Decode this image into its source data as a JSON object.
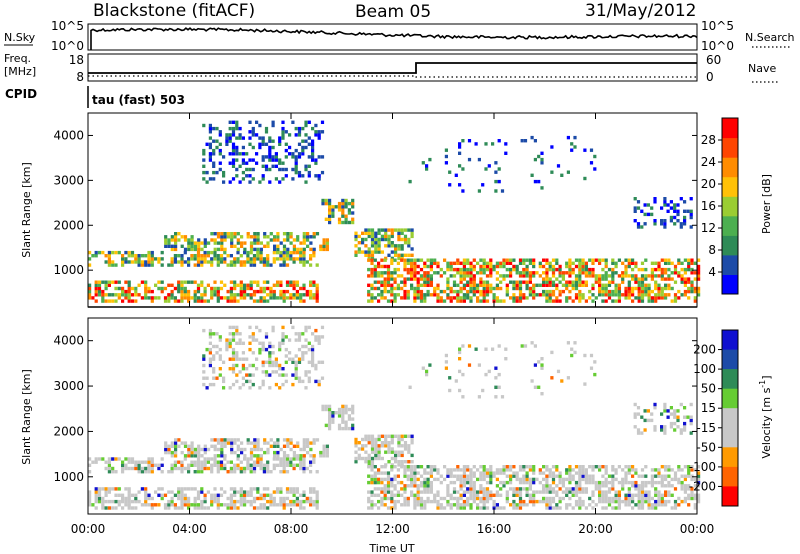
{
  "header": {
    "station": "Blackstone (fitACF)",
    "beam": "Beam 05",
    "date": "31/May/2012"
  },
  "side_labels": {
    "nsky": "N.Sky",
    "freq": "Freq.",
    "mhz": "[MHz]",
    "cpid": "CPID",
    "nsearch": "N.Search",
    "nave": "Nave",
    "cpid_value": "tau (fast) 503"
  },
  "mini_axes": {
    "nsky_top": "10^5",
    "nsky_bottom": "10^0",
    "nsearch_top": "10^5",
    "nsearch_bottom": "10^0",
    "freq_top": "18",
    "freq_bottom": "8",
    "nave_top": "60",
    "nave_bottom": "0"
  },
  "colors": {
    "power": [
      "#0000ff",
      "#1c4ba8",
      "#2e8b57",
      "#4caf50",
      "#9acd32",
      "#ffc107",
      "#ff8c00",
      "#ff4500",
      "#ff0000"
    ],
    "velocity": [
      "#ff0000",
      "#ff6400",
      "#ff9a00",
      "#c8c8c8",
      "#c8c8c8",
      "#66cc33",
      "#2e8b57",
      "#1c4ba8",
      "#1010d0"
    ]
  },
  "chart_data": [
    {
      "type": "heatmap",
      "panel": "power",
      "xlabel": "Time UT",
      "ylabel": "Slant Range [km]",
      "x_ticks": [
        "00:00",
        "04:00",
        "08:00",
        "12:00",
        "16:00",
        "20:00",
        "00:00"
      ],
      "y_ticks": [
        1000,
        2000,
        3000,
        4000
      ],
      "xlim": [
        0,
        24
      ],
      "ylim": [
        180,
        4500
      ],
      "colorbar_label": "Power [dB]",
      "colorbar_ticks": [
        4,
        8,
        12,
        16,
        20,
        24,
        28
      ],
      "colorbar_range": [
        0,
        32
      ]
    },
    {
      "type": "heatmap",
      "panel": "velocity",
      "xlabel": "Time UT",
      "ylabel": "Slant Range [km]",
      "x_ticks": [
        "00:00",
        "04:00",
        "08:00",
        "12:00",
        "16:00",
        "20:00",
        "00:00"
      ],
      "y_ticks": [
        1000,
        2000,
        3000,
        4000
      ],
      "xlim": [
        0,
        24
      ],
      "ylim": [
        180,
        4500
      ],
      "colorbar_label": "Velocity [m s^-1]",
      "colorbar_ticks": [
        200,
        100,
        50,
        15,
        -15,
        -50,
        -100,
        -200
      ]
    }
  ],
  "scatter_bands": [
    {
      "t0": 0.0,
      "t1": 9.0,
      "r0": 350,
      "r1": 800,
      "kind": "near"
    },
    {
      "t0": 0.0,
      "t1": 9.0,
      "r0": 1150,
      "r1": 1450,
      "kind": "mid"
    },
    {
      "t0": 3.0,
      "t1": 9.5,
      "r0": 1500,
      "r1": 1900,
      "kind": "mid"
    },
    {
      "t0": 4.5,
      "t1": 9.2,
      "r0": 3000,
      "r1": 4400,
      "kind": "far"
    },
    {
      "t0": 9.2,
      "t1": 10.5,
      "r0": 2100,
      "r1": 2600,
      "kind": "mid"
    },
    {
      "t0": 10.5,
      "t1": 12.8,
      "r0": 1300,
      "r1": 2000,
      "kind": "mid"
    },
    {
      "t0": 11.0,
      "t1": 24.0,
      "r0": 350,
      "r1": 1300,
      "kind": "near"
    },
    {
      "t0": 21.5,
      "t1": 23.8,
      "r0": 2000,
      "r1": 2700,
      "kind": "far"
    },
    {
      "t0": 12.5,
      "t1": 20.0,
      "r0": 2800,
      "r1": 4000,
      "kind": "sparse"
    }
  ]
}
